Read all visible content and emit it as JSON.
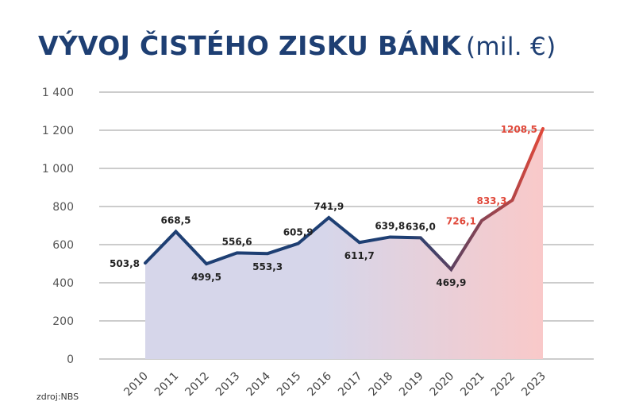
{
  "header": {
    "title": "VÝVOJ ČISTÉHO ZISKU BÁNK",
    "unit": "(mil. €)"
  },
  "source": "zdroj:NBS",
  "colors": {
    "title": "#1e3f73",
    "line_start": "#1e3f73",
    "line_end": "#e0483a",
    "area_start": "#d6d6ea",
    "area_end": "#f9c9c9",
    "highlight_label": "#e0483a",
    "label": "#222222",
    "grid": "#9a9a9a"
  },
  "chart_data": {
    "type": "area",
    "title": "VÝVOJ ČISTÉHO ZISKU BÁNK (mil. €)",
    "xlabel": "",
    "ylabel": "",
    "categories": [
      "2010",
      "2011",
      "2012",
      "2013",
      "2014",
      "2015",
      "2016",
      "2017",
      "2018",
      "2019",
      "2020",
      "2021",
      "2022",
      "2023"
    ],
    "values": [
      503.8,
      668.5,
      499.5,
      556.6,
      553.3,
      605.9,
      741.9,
      611.7,
      639.8,
      636.0,
      469.9,
      726.1,
      833.3,
      1208.5
    ],
    "value_labels": [
      "503,8",
      "668,5",
      "499,5",
      "556,6",
      "553,3",
      "605,9",
      "741,9",
      "611,7",
      "639,8",
      "636,0",
      "469,9",
      "726,1",
      "833,3",
      "1208,5"
    ],
    "highlighted_labels": [
      false,
      false,
      false,
      false,
      false,
      false,
      false,
      false,
      false,
      false,
      false,
      true,
      true,
      true
    ],
    "label_position": [
      "left",
      "above",
      "below",
      "above",
      "below",
      "above",
      "above",
      "below",
      "above",
      "above",
      "below",
      "left",
      "left",
      "left"
    ],
    "ylim": [
      0,
      1400
    ],
    "yticks": [
      0,
      200,
      400,
      600,
      800,
      1000,
      1200,
      1400
    ],
    "ytick_labels": [
      "0",
      "200",
      "400",
      "600",
      "800",
      "1 000",
      "1 200",
      "1 400"
    ],
    "grid": "horizontal",
    "legend": "none"
  }
}
